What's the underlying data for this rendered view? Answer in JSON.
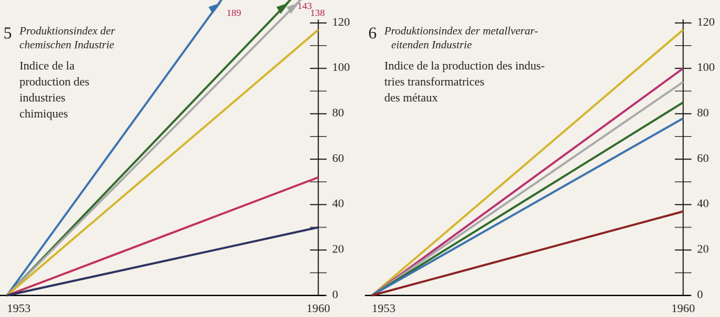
{
  "chart_data": [
    {
      "type": "line",
      "number": "5",
      "title": [
        "Produktionsindex der",
        "chemischen Industrie"
      ],
      "subtitle": [
        "Indice de la",
        "production des",
        "industries",
        "chimiques"
      ],
      "x": [
        1953,
        1960
      ],
      "xlim": [
        1953,
        1960
      ],
      "xticks": [
        1953,
        1960
      ],
      "ylim": [
        0,
        120
      ],
      "yticks": [
        0,
        20,
        40,
        60,
        80,
        100,
        120
      ],
      "yminorticks": [
        10,
        30,
        50,
        70,
        90,
        110
      ],
      "series": [
        {
          "color": "#3a72b0",
          "values": [
            0,
            189
          ]
        },
        {
          "color": "#2f6a2a",
          "values": [
            0,
            143
          ]
        },
        {
          "color": "#a8a8a8",
          "values": [
            0,
            138
          ]
        },
        {
          "color": "#d4b52a",
          "values": [
            0,
            117
          ]
        },
        {
          "color": "#c0305a",
          "values": [
            0,
            52
          ]
        },
        {
          "color": "#2a3060",
          "values": [
            0,
            30
          ]
        }
      ],
      "labeled_series": [
        0,
        1,
        2
      ]
    },
    {
      "type": "line",
      "number": "6",
      "title": [
        "Produktionsindex der metallverar-",
        "eitenden Industrie"
      ],
      "subtitle": [
        "Indice de la production des indus-",
        "tries transformatrices",
        "des métaux"
      ],
      "x": [
        1953,
        1960
      ],
      "xlim": [
        1953,
        1960
      ],
      "xticks": [
        1953,
        1960
      ],
      "ylim": [
        0,
        120
      ],
      "yticks": [
        0,
        20,
        40,
        60,
        80,
        100,
        120
      ],
      "yminorticks": [
        10,
        30,
        50,
        70,
        90,
        110
      ],
      "series": [
        {
          "color": "#d4b52a",
          "values": [
            0,
            117
          ]
        },
        {
          "color": "#b83070",
          "values": [
            0,
            100
          ]
        },
        {
          "color": "#a8a8a8",
          "values": [
            0,
            94
          ]
        },
        {
          "color": "#2f6a2a",
          "values": [
            0,
            85
          ]
        },
        {
          "color": "#3a72b0",
          "values": [
            0,
            78
          ]
        },
        {
          "color": "#8a2020",
          "values": [
            0,
            37
          ]
        }
      ],
      "labeled_series": []
    }
  ]
}
